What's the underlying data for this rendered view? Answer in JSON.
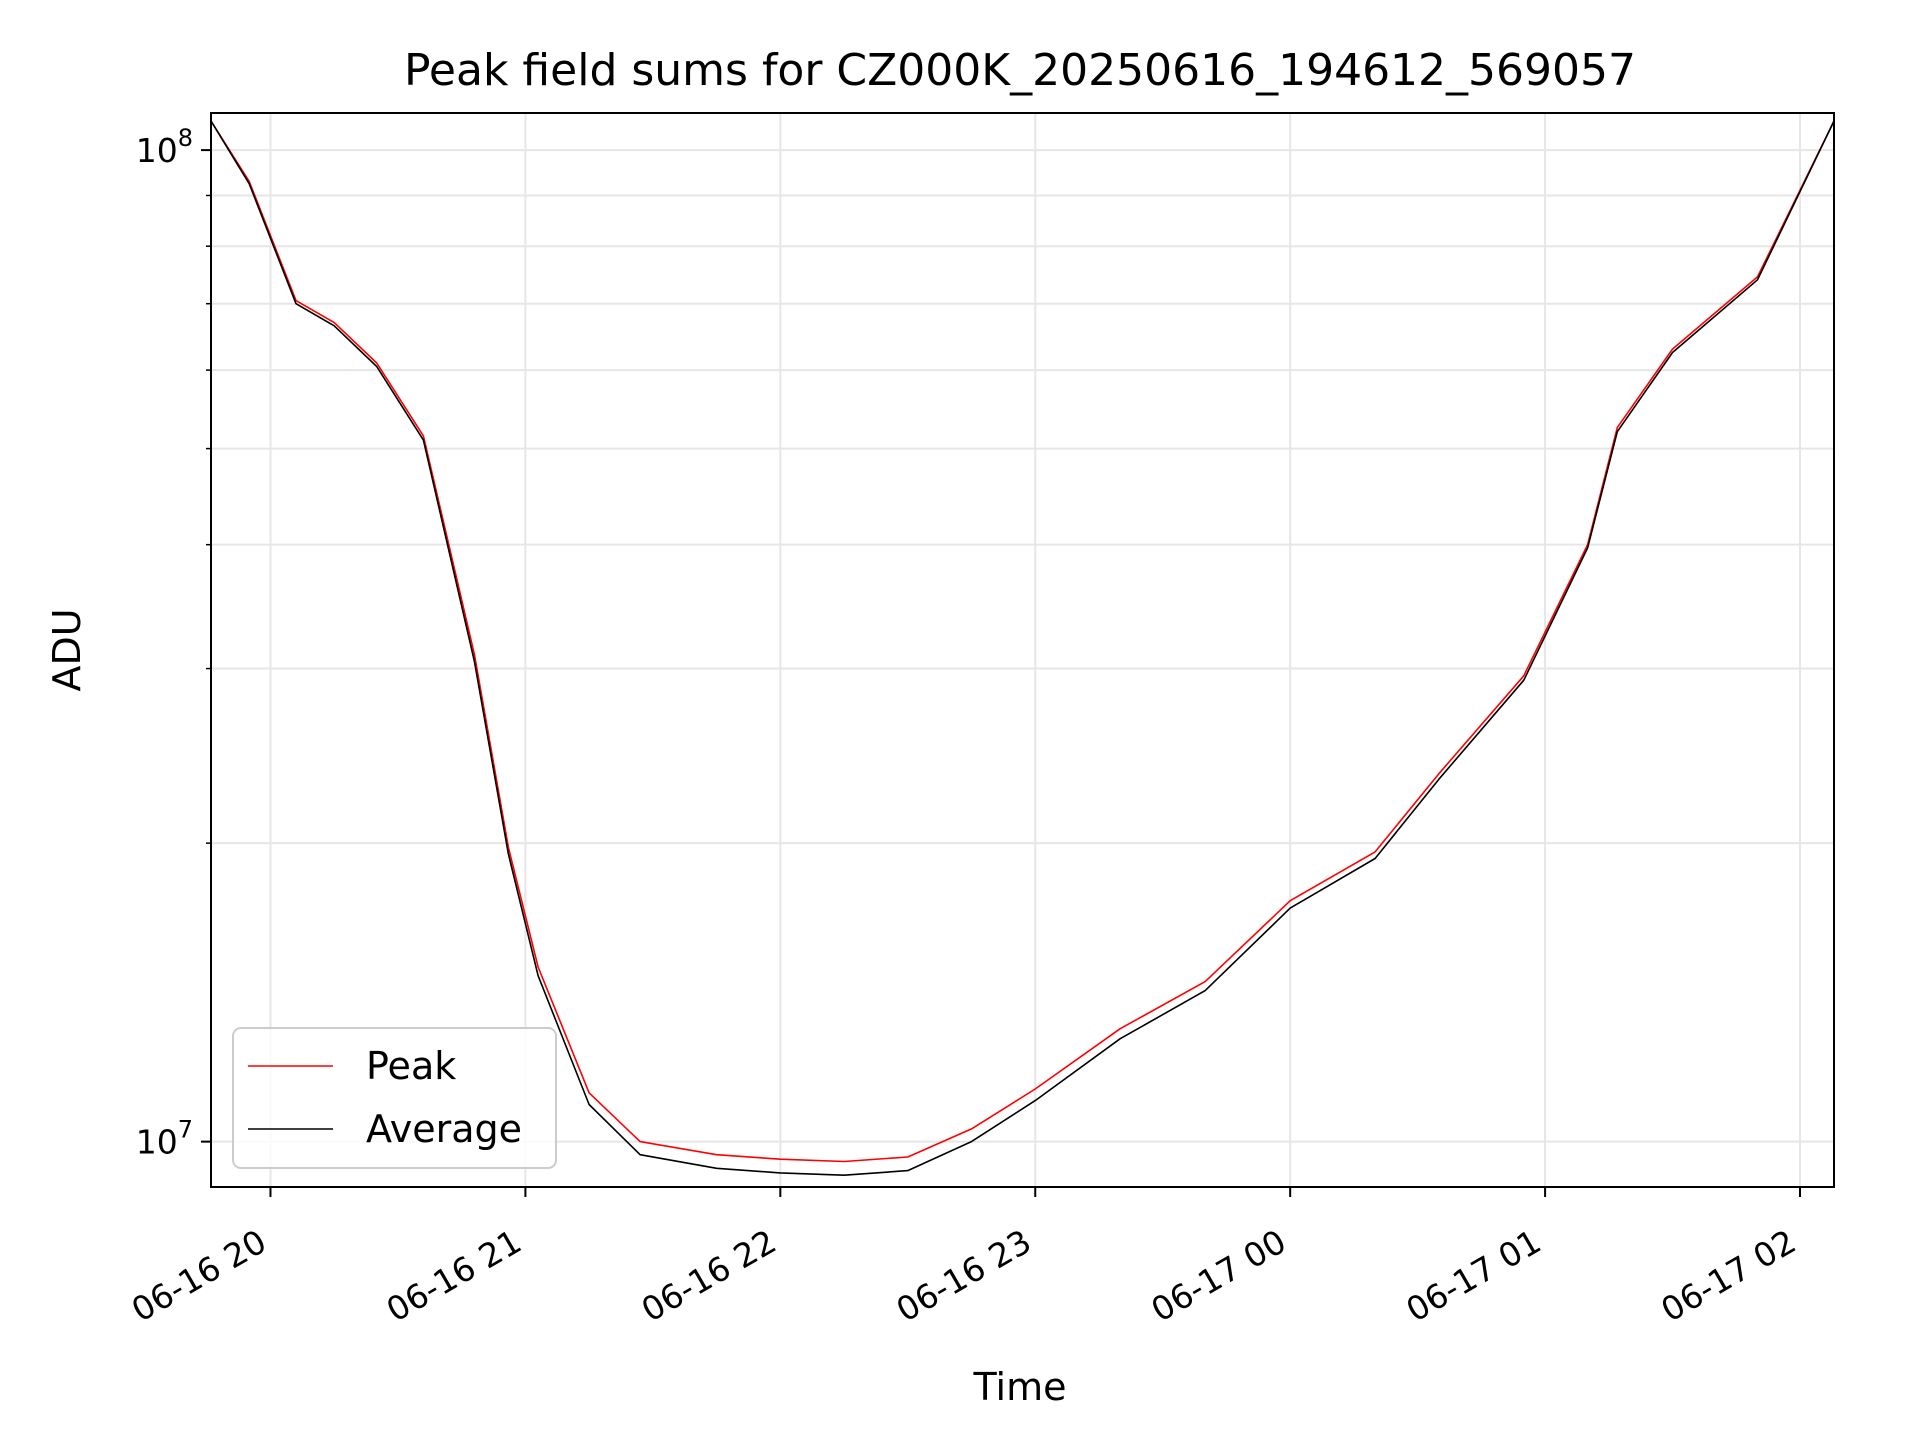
{
  "chart_data": {
    "type": "line",
    "title": "Peak field sums for CZ000K_20250616_194612_569057",
    "xlabel": "Time",
    "ylabel": "ADU",
    "yscale": "log",
    "ylim": [
      9000000,
      109000000
    ],
    "xlim": [
      "2025-06-16 19:46",
      "2025-06-17 02:08"
    ],
    "x_ticks": [
      {
        "value": "2025-06-16 20:00",
        "label": "06-16 20"
      },
      {
        "value": "2025-06-16 21:00",
        "label": "06-16 21"
      },
      {
        "value": "2025-06-16 22:00",
        "label": "06-16 22"
      },
      {
        "value": "2025-06-16 23:00",
        "label": "06-16 23"
      },
      {
        "value": "2025-06-17 00:00",
        "label": "06-17 00"
      },
      {
        "value": "2025-06-17 01:00",
        "label": "06-17 01"
      },
      {
        "value": "2025-06-17 02:00",
        "label": "06-17 02"
      }
    ],
    "y_ticks": [
      {
        "value": 10000000,
        "base": "10",
        "exp": "7"
      },
      {
        "value": 100000000,
        "base": "10",
        "exp": "8"
      }
    ],
    "y_minor_ticks": [
      20000000,
      30000000,
      40000000,
      50000000,
      60000000,
      70000000,
      80000000,
      90000000
    ],
    "grid": true,
    "legend_position": "lower-left",
    "series": [
      {
        "name": "Peak",
        "color": "#ff0000",
        "x": [
          "2025-06-16 19:46",
          "2025-06-16 19:55",
          "2025-06-16 20:06",
          "2025-06-16 20:15",
          "2025-06-16 20:25",
          "2025-06-16 20:36",
          "2025-06-16 20:48",
          "2025-06-16 20:56",
          "2025-06-16 21:03",
          "2025-06-16 21:15",
          "2025-06-16 21:27",
          "2025-06-16 21:45",
          "2025-06-16 22:00",
          "2025-06-16 22:15",
          "2025-06-16 22:30",
          "2025-06-16 22:45",
          "2025-06-16 23:00",
          "2025-06-16 23:20",
          "2025-06-16 23:40",
          "2025-06-17 00:00",
          "2025-06-17 00:20",
          "2025-06-17 00:35",
          "2025-06-17 00:55",
          "2025-06-17 01:10",
          "2025-06-17 01:17",
          "2025-06-17 01:30",
          "2025-06-17 01:50",
          "2025-06-17 02:08"
        ],
        "values": [
          107000000,
          93000000,
          70500000,
          67000000,
          61000000,
          51500000,
          31000000,
          19800000,
          15000000,
          11200000,
          10000000,
          9700000,
          9600000,
          9550000,
          9650000,
          10300000,
          11300000,
          13000000,
          14500000,
          17500000,
          19600000,
          23500000,
          29500000,
          40000000,
          52500000,
          63000000,
          74500000,
          107000000
        ]
      },
      {
        "name": "Average",
        "color": "#000000",
        "x": [
          "2025-06-16 19:46",
          "2025-06-16 19:55",
          "2025-06-16 20:06",
          "2025-06-16 20:15",
          "2025-06-16 20:25",
          "2025-06-16 20:36",
          "2025-06-16 20:48",
          "2025-06-16 20:56",
          "2025-06-16 21:03",
          "2025-06-16 21:15",
          "2025-06-16 21:27",
          "2025-06-16 21:45",
          "2025-06-16 22:00",
          "2025-06-16 22:15",
          "2025-06-16 22:30",
          "2025-06-16 22:45",
          "2025-06-16 23:00",
          "2025-06-16 23:20",
          "2025-06-16 23:40",
          "2025-06-17 00:00",
          "2025-06-17 00:20",
          "2025-06-17 00:35",
          "2025-06-17 00:55",
          "2025-06-17 01:10",
          "2025-06-17 01:17",
          "2025-06-17 01:30",
          "2025-06-17 01:50",
          "2025-06-17 02:08"
        ],
        "values": [
          107000000,
          92500000,
          70000000,
          66500000,
          60500000,
          51000000,
          30500000,
          19500000,
          14700000,
          10900000,
          9700000,
          9400000,
          9300000,
          9250000,
          9350000,
          10000000,
          11000000,
          12700000,
          14200000,
          17200000,
          19300000,
          23200000,
          29200000,
          39700000,
          52000000,
          62500000,
          74000000,
          107000000
        ]
      }
    ]
  }
}
